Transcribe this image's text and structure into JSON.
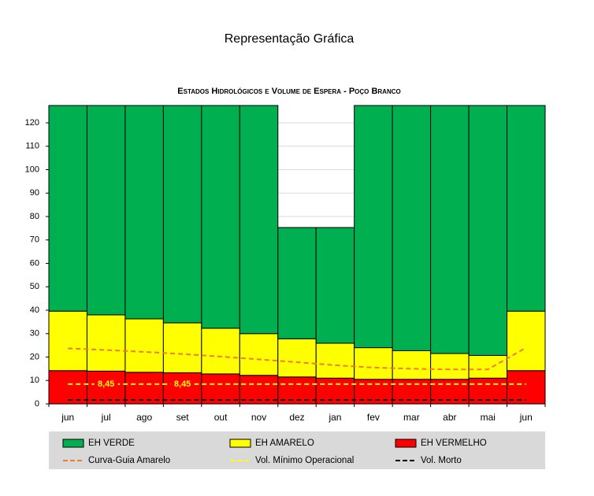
{
  "header": {
    "title": "Representação Gráfica"
  },
  "chart_data": {
    "type": "bar",
    "stacked": true,
    "title": "Estados Hidrológicos e Volume de Espera - Poço Branco",
    "categories": [
      "jun",
      "jul",
      "ago",
      "set",
      "out",
      "nov",
      "dez",
      "jan",
      "fev",
      "mar",
      "abr",
      "mai",
      "jun"
    ],
    "ylim": [
      0,
      127.4
    ],
    "yticks": [
      0,
      10,
      20,
      30,
      40,
      50,
      60,
      70,
      80,
      90,
      100,
      110,
      120
    ],
    "grid": true,
    "series": [
      {
        "name": "EH VERMELHO",
        "type": "bar",
        "color": "#ff0000",
        "values": [
          14.2,
          14,
          13.5,
          13.3,
          12.8,
          12.2,
          11.5,
          11,
          10.5,
          10.5,
          10.5,
          11,
          14.2
        ]
      },
      {
        "name": "EH AMARELO",
        "type": "bar",
        "color": "#ffff00",
        "values": [
          25.4,
          24,
          22.8,
          21.3,
          19.5,
          17.8,
          16.3,
          14.9,
          13.5,
          12.2,
          11,
          9.7,
          25.4
        ]
      },
      {
        "name": "EH VERDE",
        "type": "bar",
        "color": "#00b050",
        "values": [
          87.8,
          89.4,
          91.1,
          92.8,
          95.1,
          97.4,
          47.5,
          49.4,
          103.4,
          104.7,
          105.9,
          106.7,
          87.8
        ]
      },
      {
        "name": "Curva-Guia Amarelo",
        "type": "line",
        "color": "#ed7d31",
        "values": [
          23.7,
          23,
          22.2,
          21.3,
          20.2,
          19,
          17.8,
          16.5,
          15.5,
          15,
          14.7,
          14.7,
          24
        ]
      },
      {
        "name": "Vol. Mínimo Operacional",
        "type": "line",
        "color": "#ffff00",
        "values": [
          8.45,
          8.45,
          8.45,
          8.45,
          8.45,
          8.45,
          8.45,
          8.45,
          8.45,
          8.45,
          8.45,
          8.45,
          8.45
        ],
        "value_labels": [
          null,
          "8,45",
          null,
          "8,45",
          null,
          null,
          null,
          null,
          null,
          null,
          null,
          null,
          null
        ]
      },
      {
        "name": "Vol. Morto",
        "type": "line",
        "color": "#000000",
        "values": [
          1.7,
          1.7,
          1.7,
          1.7,
          1.7,
          1.7,
          1.7,
          1.7,
          1.7,
          1.7,
          1.7,
          1.7,
          1.7
        ]
      }
    ],
    "legend_order": [
      2,
      1,
      0,
      3,
      4,
      5
    ]
  }
}
